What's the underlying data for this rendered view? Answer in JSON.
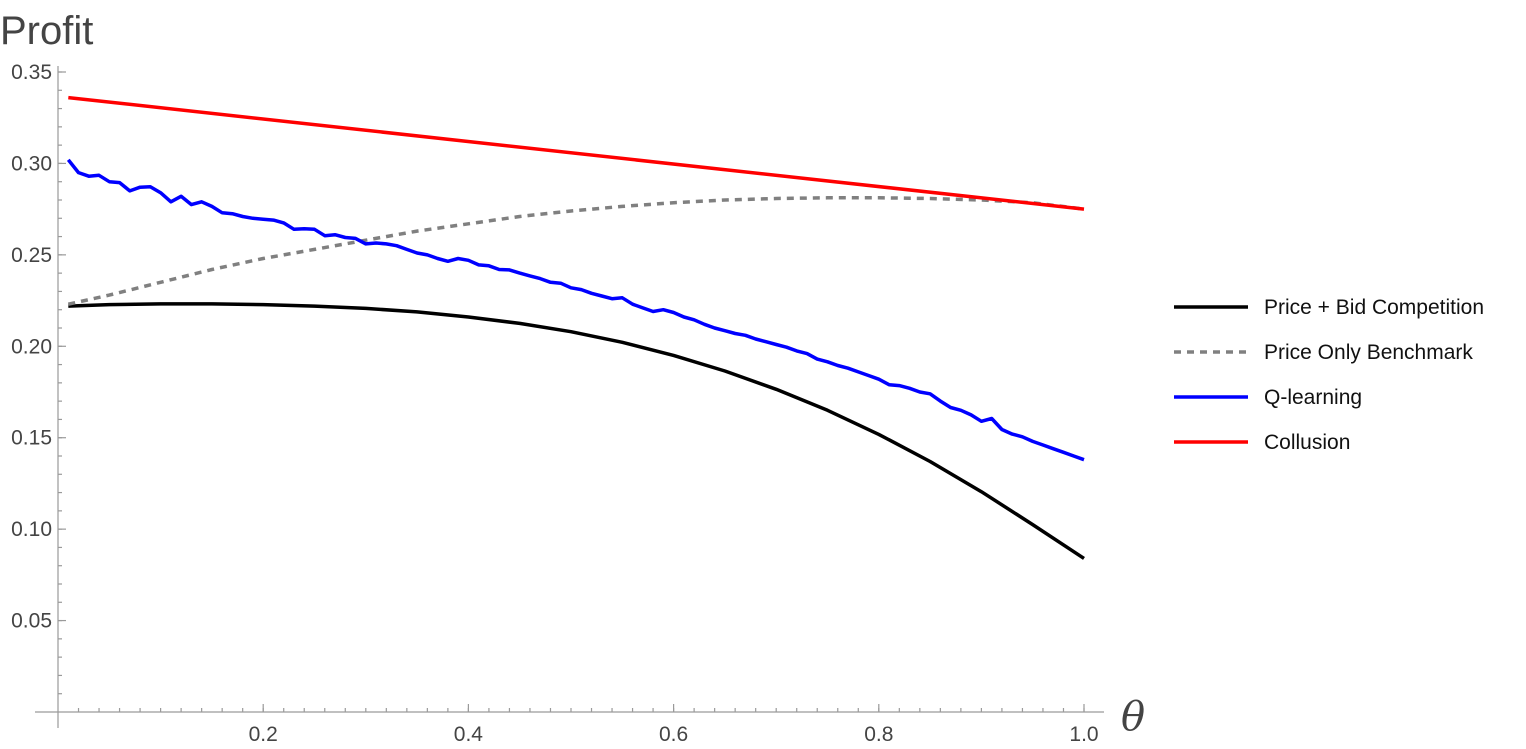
{
  "chart_data": {
    "type": "line",
    "ylabel": "Profit",
    "xlabel": "θ",
    "xlim": [
      0,
      1.0
    ],
    "ylim": [
      0,
      0.35
    ],
    "x_ticks": [
      "0.2",
      "0.4",
      "0.6",
      "0.8",
      "1.0"
    ],
    "y_ticks": [
      "0.05",
      "0.10",
      "0.15",
      "0.20",
      "0.25",
      "0.30",
      "0.35"
    ],
    "grid": false,
    "legend_position": "right",
    "series": [
      {
        "name": "Price + Bid Competition",
        "color": "#000000",
        "dash": "solid",
        "x": [
          0.01,
          0.05,
          0.1,
          0.15,
          0.2,
          0.25,
          0.3,
          0.35,
          0.4,
          0.45,
          0.5,
          0.55,
          0.6,
          0.65,
          0.7,
          0.75,
          0.8,
          0.85,
          0.9,
          0.95,
          1.0
        ],
        "y": [
          0.222,
          0.2228,
          0.2232,
          0.2232,
          0.2228,
          0.222,
          0.2207,
          0.2188,
          0.216,
          0.2125,
          0.208,
          0.2022,
          0.195,
          0.1865,
          0.1765,
          0.165,
          0.1518,
          0.137,
          0.1205,
          0.1025,
          0.084
        ]
      },
      {
        "name": "Price Only Benchmark",
        "color": "#808080",
        "dash": "dashed",
        "x": [
          0.01,
          0.05,
          0.1,
          0.15,
          0.2,
          0.25,
          0.3,
          0.35,
          0.4,
          0.45,
          0.5,
          0.55,
          0.6,
          0.65,
          0.7,
          0.75,
          0.8,
          0.85,
          0.9,
          0.95,
          1.0
        ],
        "y": [
          0.223,
          0.228,
          0.235,
          0.242,
          0.248,
          0.253,
          0.258,
          0.263,
          0.267,
          0.271,
          0.274,
          0.2765,
          0.2785,
          0.28,
          0.2808,
          0.2812,
          0.2812,
          0.2808,
          0.28,
          0.2785,
          0.275
        ]
      },
      {
        "name": "Q-learning",
        "color": "#0000ff",
        "dash": "solid",
        "x": [
          0.01,
          0.02,
          0.03,
          0.04,
          0.05,
          0.06,
          0.07,
          0.08,
          0.09,
          0.1,
          0.11,
          0.12,
          0.13,
          0.14,
          0.15,
          0.16,
          0.17,
          0.18,
          0.19,
          0.2,
          0.21,
          0.22,
          0.23,
          0.24,
          0.25,
          0.26,
          0.27,
          0.28,
          0.29,
          0.3,
          0.31,
          0.32,
          0.33,
          0.34,
          0.35,
          0.36,
          0.37,
          0.38,
          0.39,
          0.4,
          0.41,
          0.42,
          0.43,
          0.44,
          0.45,
          0.46,
          0.47,
          0.48,
          0.49,
          0.5,
          0.51,
          0.52,
          0.53,
          0.54,
          0.55,
          0.56,
          0.57,
          0.58,
          0.59,
          0.6,
          0.61,
          0.62,
          0.63,
          0.64,
          0.65,
          0.66,
          0.67,
          0.68,
          0.69,
          0.7,
          0.71,
          0.72,
          0.73,
          0.74,
          0.75,
          0.76,
          0.77,
          0.78,
          0.79,
          0.8,
          0.81,
          0.82,
          0.83,
          0.84,
          0.85,
          0.86,
          0.87,
          0.88,
          0.89,
          0.9,
          0.91,
          0.92,
          0.93,
          0.94,
          0.95,
          0.96,
          0.97,
          0.98,
          0.99,
          1.0
        ],
        "y": [
          0.302,
          0.295,
          0.293,
          0.2935,
          0.29,
          0.2895,
          0.285,
          0.287,
          0.2873,
          0.284,
          0.279,
          0.282,
          0.2775,
          0.279,
          0.2765,
          0.273,
          0.2725,
          0.271,
          0.27,
          0.2695,
          0.269,
          0.2675,
          0.264,
          0.2643,
          0.264,
          0.2605,
          0.261,
          0.2595,
          0.259,
          0.256,
          0.2565,
          0.256,
          0.255,
          0.253,
          0.251,
          0.25,
          0.248,
          0.2465,
          0.248,
          0.247,
          0.2445,
          0.244,
          0.242,
          0.2418,
          0.24,
          0.2385,
          0.237,
          0.235,
          0.2345,
          0.232,
          0.231,
          0.229,
          0.2275,
          0.226,
          0.2265,
          0.223,
          0.221,
          0.219,
          0.22,
          0.2185,
          0.216,
          0.2145,
          0.212,
          0.21,
          0.2085,
          0.207,
          0.206,
          0.204,
          0.2025,
          0.201,
          0.1995,
          0.1975,
          0.196,
          0.193,
          0.1915,
          0.1895,
          0.188,
          0.186,
          0.184,
          0.182,
          0.179,
          0.1785,
          0.177,
          0.175,
          0.174,
          0.17,
          0.1665,
          0.165,
          0.1625,
          0.159,
          0.1605,
          0.1545,
          0.152,
          0.1505,
          0.148,
          0.146,
          0.144,
          0.142,
          0.14,
          0.138
        ]
      },
      {
        "name": "Collusion",
        "color": "#ff0000",
        "dash": "solid",
        "x": [
          0.01,
          1.0
        ],
        "y": [
          0.336,
          0.275
        ]
      }
    ]
  }
}
